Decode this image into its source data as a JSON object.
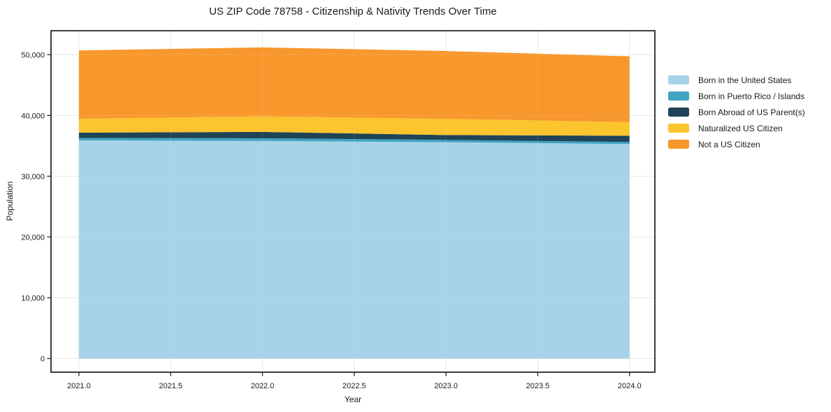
{
  "chart_data": {
    "type": "area",
    "stacked": true,
    "title": "US ZIP Code 78758 - Citizenship & Nativity Trends Over Time",
    "xlabel": "Year",
    "ylabel": "Population",
    "x": [
      2021,
      2022,
      2023,
      2024
    ],
    "series": [
      {
        "name": "Born in the United States",
        "color": "#A7D3E8",
        "values": [
          35900,
          35800,
          35600,
          35300
        ]
      },
      {
        "name": "Born in Puerto Rico / Islands",
        "color": "#3FA3C4",
        "values": [
          400,
          450,
          380,
          340
        ]
      },
      {
        "name": "Born Abroad of US Parent(s)",
        "color": "#1F4457",
        "values": [
          870,
          1040,
          800,
          1020
        ]
      },
      {
        "name": "Naturalized US Citizen",
        "color": "#FCC42D",
        "values": [
          2300,
          2560,
          2670,
          2240
        ]
      },
      {
        "name": "Not a US Citizen",
        "color": "#F8972B",
        "values": [
          11230,
          11350,
          11150,
          10830
        ]
      }
    ],
    "stacked_totals": [
      50700,
      51200,
      50600,
      49730
    ],
    "xlim": [
      2020.848,
      2024.138
    ],
    "ylim": [
      -2240,
      53940
    ],
    "x_ticks": {
      "values": [
        2021.0,
        2021.5,
        2022.0,
        2022.5,
        2023.0,
        2023.5,
        2024.0
      ],
      "labels": [
        "2021.0",
        "2021.5",
        "2022.0",
        "2022.5",
        "2023.0",
        "2023.5",
        "2024.0"
      ]
    },
    "y_ticks": {
      "values": [
        0,
        10000,
        20000,
        30000,
        40000,
        50000
      ],
      "labels": [
        "0",
        "10,000",
        "20,000",
        "30,000",
        "40,000",
        "50,000"
      ]
    },
    "grid": true,
    "legend_position": "right-outside",
    "styles": {
      "grid_color": "#E8E8E8",
      "axis_color": "#262626",
      "text_color": "#1A1A1A",
      "background": "#FFFFFF"
    }
  }
}
